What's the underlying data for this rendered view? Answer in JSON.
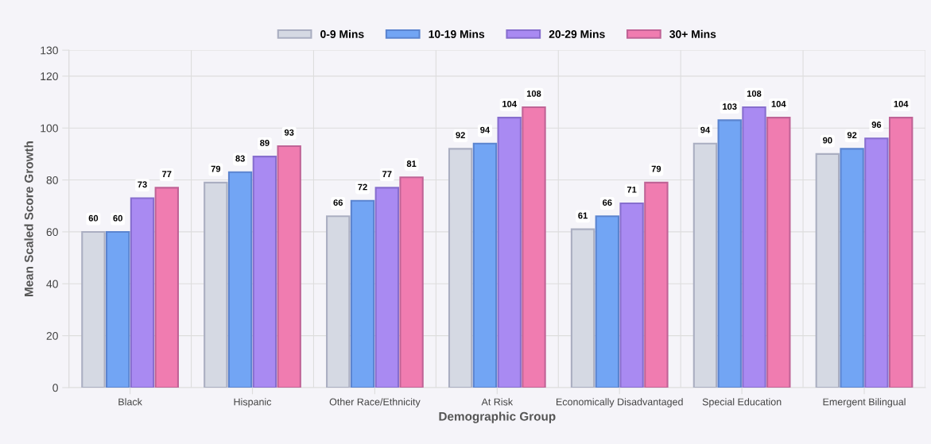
{
  "chart_data": {
    "type": "bar",
    "xlabel": "Demographic Group",
    "ylabel": "Mean Scaled Score Growth",
    "categories": [
      "Black",
      "Hispanic",
      "Other Race/Ethnicity",
      "At Risk",
      "Economically Disadvantaged",
      "Special Education",
      "Emergent Bilingual"
    ],
    "series": [
      {
        "name": "0-9 Mins",
        "color": "#d5d9e3",
        "values": [
          60,
          79,
          66,
          92,
          61,
          94,
          90
        ]
      },
      {
        "name": "10-19 Mins",
        "color": "#72a5f4",
        "values": [
          60,
          83,
          72,
          94,
          66,
          103,
          92
        ]
      },
      {
        "name": "20-29 Mins",
        "color": "#a98af2",
        "values": [
          73,
          89,
          77,
          104,
          71,
          108,
          96
        ]
      },
      {
        "name": "30+ Mins",
        "color": "#f07cb0",
        "values": [
          77,
          93,
          81,
          108,
          79,
          104,
          104
        ]
      }
    ],
    "ylim": [
      0,
      130
    ],
    "yticks": [
      0,
      20,
      40,
      60,
      80,
      100,
      120,
      130
    ],
    "grid": true,
    "legend": "top",
    "data_labels": true
  }
}
